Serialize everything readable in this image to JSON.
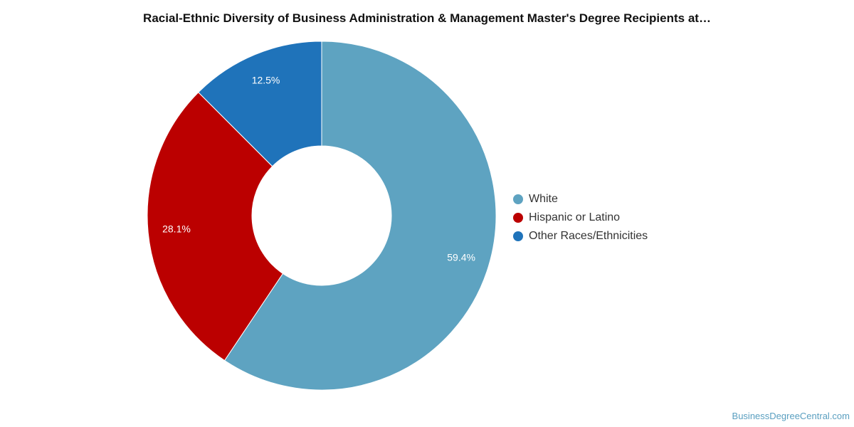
{
  "chart_data": {
    "type": "pie",
    "title": "Racial-Ethnic Diversity of Business Administration & Management Master's Degree Recipients at…",
    "categories": [
      "White",
      "Hispanic or Latino",
      "Other Races/Ethnicities"
    ],
    "values": [
      59.4,
      28.1,
      12.5
    ],
    "value_labels": [
      "59.4%",
      "28.1%",
      "12.5%"
    ],
    "colors": [
      "#5ea3c1",
      "#bb0000",
      "#1f73ba"
    ],
    "donut": true,
    "legend_position": "right"
  },
  "source": "BusinessDegreeCentral.com"
}
